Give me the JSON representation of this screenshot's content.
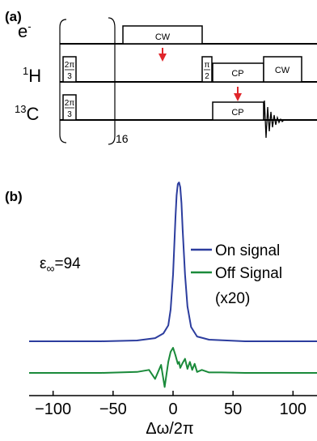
{
  "panel_a": {
    "label": "(a)",
    "channels": {
      "electron": {
        "label_main": "e",
        "label_sup": "-"
      },
      "proton": {
        "label_sup": "1",
        "label_main": "H"
      },
      "carbon": {
        "label_sup": "13",
        "label_main": "C"
      }
    },
    "pulses": {
      "cw_electron": "CW",
      "pi2_num": "π",
      "pi2_den": "2",
      "two_pi_3_num_h": "2π",
      "two_pi_3_den_h": "3",
      "two_pi_3_num_c": "2π",
      "two_pi_3_den_c": "3",
      "cp_h": "CP",
      "cw_h": "CW",
      "cp_c": "CP"
    },
    "repeat_count": "16",
    "marker_color": "#e0262b"
  },
  "panel_b": {
    "label": "(b)",
    "epsilon_symbol": "ε",
    "epsilon_subscript": "∞",
    "epsilon_value": "=94",
    "legend": {
      "on_label": "On signal",
      "off_label": "Off Signal",
      "off_note": "(x20)"
    },
    "xlabel": "Δω/2π",
    "colors": {
      "on": "#2c3d9e",
      "off": "#1a8a3a"
    }
  },
  "chart_data": {
    "type": "line",
    "xlabel": "Δω/2π",
    "xlim": [
      -120,
      120
    ],
    "xticks": [
      -100,
      -50,
      0,
      50,
      100
    ],
    "xtick_labels": [
      "−100",
      "−50",
      "0",
      "50",
      "100"
    ],
    "grid": false,
    "legend_position": "right",
    "series": [
      {
        "name": "On signal",
        "color": "#2c3d9e",
        "x": [
          -120,
          -60,
          -30,
          -15,
          -8,
          -4,
          -2,
          0,
          1,
          2,
          3,
          4,
          5,
          6,
          7,
          8,
          10,
          12,
          15,
          20,
          30,
          60,
          120
        ],
        "y": [
          0,
          0,
          0.005,
          0.02,
          0.05,
          0.1,
          0.2,
          0.42,
          0.6,
          0.78,
          0.92,
          0.99,
          1.0,
          0.97,
          0.87,
          0.7,
          0.42,
          0.22,
          0.09,
          0.03,
          0.01,
          0,
          0
        ]
      },
      {
        "name": "Off Signal",
        "color": "#1a8a3a",
        "x": [
          -120,
          -60,
          -30,
          -20,
          -15,
          -10,
          -7,
          -4,
          -2,
          0,
          2,
          4,
          5,
          6,
          8,
          10,
          12,
          14,
          16,
          18,
          20,
          24,
          30,
          40,
          60,
          120
        ],
        "y": [
          0,
          0,
          0.02,
          0.06,
          -0.12,
          0.16,
          -0.28,
          0.22,
          0.42,
          0.5,
          0.35,
          0.18,
          0.22,
          0.1,
          0.2,
          0.28,
          0.08,
          0.22,
          0.06,
          0.18,
          0.02,
          0.06,
          0.01,
          0.01,
          0,
          0
        ]
      }
    ]
  }
}
